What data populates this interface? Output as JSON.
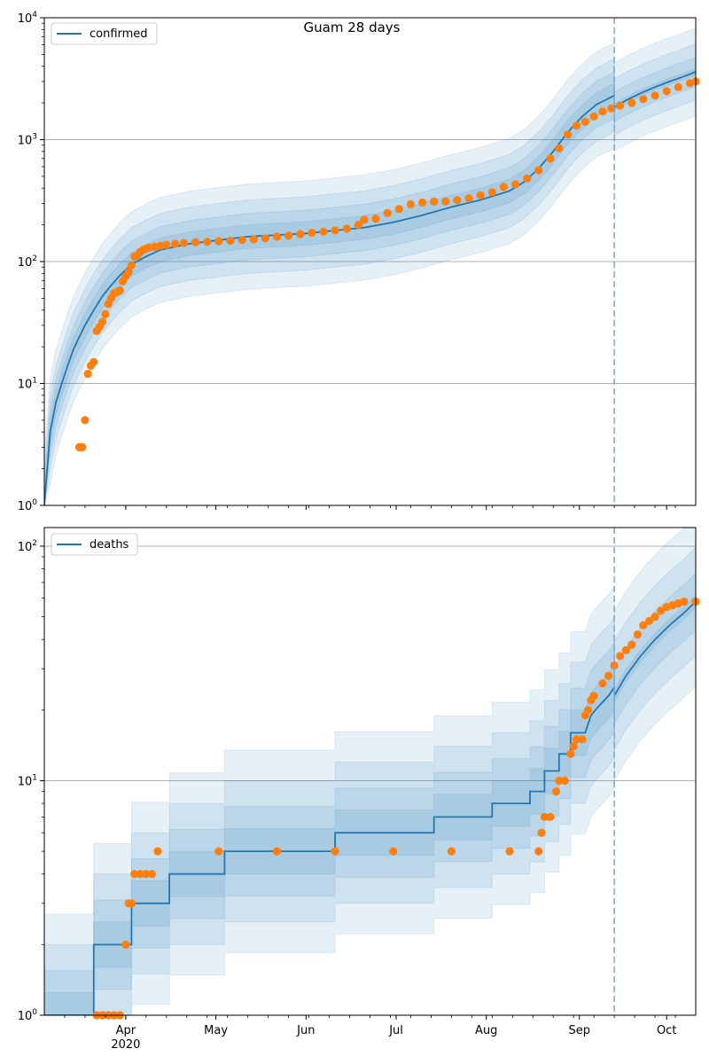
{
  "chart_data": [
    {
      "type": "line",
      "title": "Guam 28 days",
      "yscale": "log",
      "ylim": [
        1,
        10000
      ],
      "ytick_values": [
        1,
        10,
        100,
        1000,
        10000
      ],
      "ytick_labels": [
        {
          "base": "10",
          "exp": "0"
        },
        {
          "base": "10",
          "exp": "1"
        },
        {
          "base": "10",
          "exp": "2"
        },
        {
          "base": "10",
          "exp": "3"
        },
        {
          "base": "10",
          "exp": "4"
        }
      ],
      "xlim_day": [
        0,
        224
      ],
      "forecast_start_day": 196,
      "legend": {
        "label": "confirmed",
        "placement": "top-left"
      },
      "model_series": {
        "name": "confirmed",
        "x": [
          0,
          2,
          4,
          6,
          8,
          10,
          12,
          14,
          17,
          20,
          23,
          26,
          30,
          35,
          40,
          50,
          60,
          70,
          80,
          90,
          100,
          110,
          120,
          130,
          140,
          150,
          160,
          165,
          170,
          175,
          180,
          185,
          190,
          196
        ],
        "y": [
          1,
          4,
          7,
          10,
          14,
          19,
          24,
          30,
          40,
          52,
          64,
          77,
          95,
          110,
          125,
          140,
          150,
          160,
          165,
          170,
          180,
          190,
          210,
          240,
          280,
          320,
          380,
          450,
          580,
          800,
          1150,
          1550,
          1950,
          2300
        ]
      },
      "forecast_series": {
        "x": [
          196,
          200,
          205,
          210,
          215,
          220,
          224
        ],
        "y": [
          1850,
          2100,
          2400,
          2700,
          3000,
          3300,
          3600
        ]
      },
      "observed": {
        "name": "observed confirmed",
        "points": [
          [
            12,
            3
          ],
          [
            13,
            3
          ],
          [
            14,
            5
          ],
          [
            15,
            12
          ],
          [
            16,
            14
          ],
          [
            17,
            15
          ],
          [
            18,
            27
          ],
          [
            19,
            29
          ],
          [
            20,
            32
          ],
          [
            21,
            37
          ],
          [
            22,
            45
          ],
          [
            23,
            50
          ],
          [
            24,
            55
          ],
          [
            25,
            56
          ],
          [
            26,
            58
          ],
          [
            27,
            69
          ],
          [
            28,
            76
          ],
          [
            29,
            82
          ],
          [
            30,
            93
          ],
          [
            31,
            110
          ],
          [
            32,
            112
          ],
          [
            33,
            120
          ],
          [
            34,
            125
          ],
          [
            35,
            128
          ],
          [
            36,
            130
          ],
          [
            38,
            132
          ],
          [
            40,
            135
          ],
          [
            42,
            137
          ],
          [
            45,
            140
          ],
          [
            48,
            142
          ],
          [
            52,
            144
          ],
          [
            56,
            145
          ],
          [
            60,
            147
          ],
          [
            64,
            148
          ],
          [
            68,
            150
          ],
          [
            72,
            152
          ],
          [
            76,
            155
          ],
          [
            80,
            160
          ],
          [
            84,
            163
          ],
          [
            88,
            168
          ],
          [
            92,
            172
          ],
          [
            96,
            176
          ],
          [
            100,
            180
          ],
          [
            104,
            186
          ],
          [
            108,
            200
          ],
          [
            110,
            220
          ],
          [
            114,
            225
          ],
          [
            118,
            250
          ],
          [
            122,
            270
          ],
          [
            126,
            295
          ],
          [
            130,
            305
          ],
          [
            134,
            310
          ],
          [
            138,
            312
          ],
          [
            142,
            318
          ],
          [
            146,
            330
          ],
          [
            150,
            350
          ],
          [
            154,
            370
          ],
          [
            158,
            410
          ],
          [
            162,
            430
          ],
          [
            166,
            480
          ],
          [
            170,
            560
          ],
          [
            174,
            700
          ],
          [
            177,
            850
          ],
          [
            180,
            1100
          ],
          [
            183,
            1300
          ],
          [
            186,
            1400
          ],
          [
            189,
            1550
          ],
          [
            192,
            1700
          ],
          [
            195,
            1800
          ],
          [
            198,
            1900
          ],
          [
            202,
            2000
          ],
          [
            206,
            2150
          ],
          [
            210,
            2300
          ],
          [
            214,
            2500
          ],
          [
            218,
            2700
          ],
          [
            222,
            2900
          ],
          [
            224,
            3000
          ]
        ]
      }
    },
    {
      "type": "line",
      "title": "",
      "yscale": "log",
      "ylim": [
        1,
        120
      ],
      "ytick_values": [
        1,
        10,
        100
      ],
      "ytick_labels": [
        {
          "base": "10",
          "exp": "0"
        },
        {
          "base": "10",
          "exp": "1"
        },
        {
          "base": "10",
          "exp": "2"
        }
      ],
      "xlim_day": [
        0,
        224
      ],
      "forecast_start_day": 196,
      "x_ticks": [
        {
          "day": 28,
          "label": "Apr",
          "sub": "2020"
        },
        {
          "day": 59,
          "label": "May",
          "sub": ""
        },
        {
          "day": 90,
          "label": "Jun",
          "sub": ""
        },
        {
          "day": 121,
          "label": "Jul",
          "sub": ""
        },
        {
          "day": 152,
          "label": "Aug",
          "sub": ""
        },
        {
          "day": 184,
          "label": "Sep",
          "sub": ""
        },
        {
          "day": 214,
          "label": "Oct",
          "sub": ""
        }
      ],
      "legend": {
        "label": "deaths",
        "placement": "top-left"
      },
      "model_series": {
        "name": "deaths",
        "x": [
          0,
          17,
          17,
          30,
          30,
          31,
          31,
          43,
          43,
          62,
          62,
          100,
          100,
          134,
          134,
          154,
          154,
          167,
          167,
          172,
          172,
          177,
          177,
          181,
          181,
          186,
          188,
          191,
          194,
          196
        ],
        "y": [
          1,
          1,
          2,
          2,
          3,
          3,
          3,
          3,
          4,
          4,
          5,
          5,
          6,
          6,
          7,
          7,
          8,
          8,
          9,
          9,
          11,
          11,
          13,
          13,
          16,
          16,
          19,
          21,
          23,
          25
        ]
      },
      "forecast_series": {
        "x": [
          196,
          200,
          205,
          210,
          215,
          220,
          224
        ],
        "y": [
          23,
          28,
          34,
          40,
          46,
          52,
          58
        ]
      },
      "observed": {
        "name": "observed deaths",
        "points": [
          [
            18,
            1
          ],
          [
            20,
            1
          ],
          [
            22,
            1
          ],
          [
            24,
            1
          ],
          [
            26,
            1
          ],
          [
            28,
            2
          ],
          [
            29,
            3
          ],
          [
            30,
            3
          ],
          [
            31,
            4
          ],
          [
            33,
            4
          ],
          [
            35,
            4
          ],
          [
            37,
            4
          ],
          [
            39,
            5
          ],
          [
            60,
            5
          ],
          [
            80,
            5
          ],
          [
            100,
            5
          ],
          [
            120,
            5
          ],
          [
            140,
            5
          ],
          [
            160,
            5
          ],
          [
            170,
            5
          ],
          [
            171,
            6
          ],
          [
            172,
            7
          ],
          [
            174,
            7
          ],
          [
            176,
            9
          ],
          [
            177,
            10
          ],
          [
            179,
            10
          ],
          [
            181,
            13
          ],
          [
            182,
            14
          ],
          [
            183,
            15
          ],
          [
            185,
            15
          ],
          [
            186,
            19
          ],
          [
            187,
            20
          ],
          [
            188,
            22
          ],
          [
            189,
            23
          ],
          [
            192,
            26
          ],
          [
            194,
            28
          ],
          [
            196,
            31
          ],
          [
            198,
            34
          ],
          [
            200,
            36
          ],
          [
            202,
            38
          ],
          [
            204,
            42
          ],
          [
            206,
            46
          ],
          [
            208,
            48
          ],
          [
            210,
            50
          ],
          [
            212,
            53
          ],
          [
            214,
            55
          ],
          [
            216,
            56
          ],
          [
            218,
            57
          ],
          [
            220,
            58
          ],
          [
            224,
            58
          ]
        ]
      }
    }
  ],
  "colors": {
    "line": "#1f77b4",
    "points": "#ff7f0e",
    "band": "#1f77b4",
    "grid": "#b0b0b0",
    "forecast_divider": "#6fa8d6"
  }
}
